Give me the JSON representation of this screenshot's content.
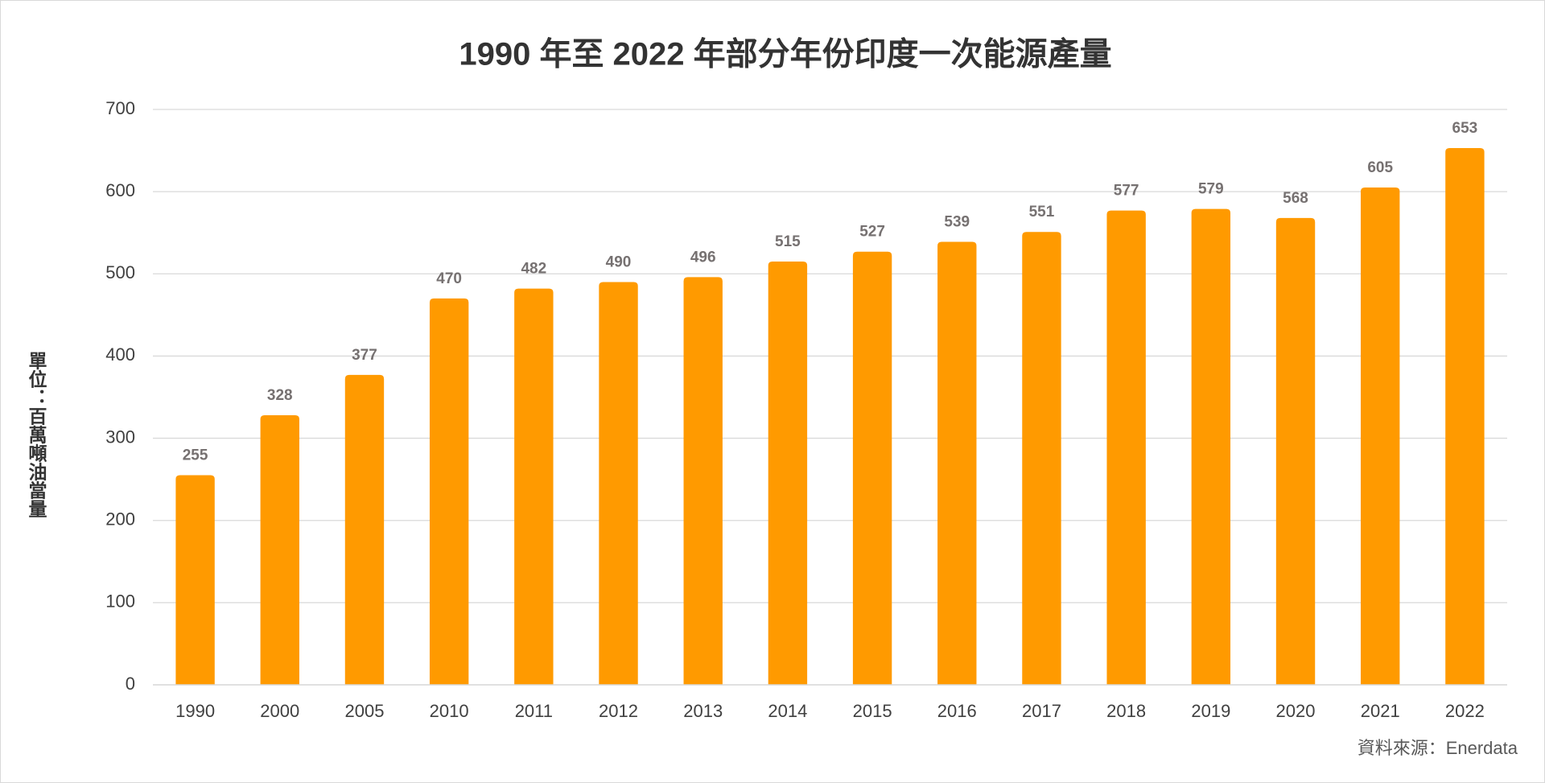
{
  "chart_data": {
    "type": "bar",
    "title": "1990 年至 2022 年部分年份印度一次能源產量",
    "y_label": "單位：百萬噸油當量",
    "source": "資料來源：Enerdata",
    "categories": [
      "1990",
      "2000",
      "2005",
      "2010",
      "2011",
      "2012",
      "2013",
      "2014",
      "2015",
      "2016",
      "2017",
      "2018",
      "2019",
      "2020",
      "2021",
      "2022"
    ],
    "values": [
      255,
      328,
      377,
      470,
      482,
      490,
      496,
      515,
      527,
      539,
      551,
      577,
      579,
      568,
      605,
      653
    ],
    "color": "#ff9a00",
    "ylim": [
      0,
      700
    ],
    "yticks": [
      0,
      100,
      200,
      300,
      400,
      500,
      600,
      700
    ],
    "grid": true
  }
}
